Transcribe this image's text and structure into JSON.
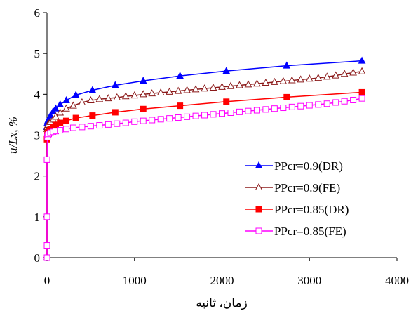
{
  "chart_data": {
    "type": "line",
    "title": "",
    "xlabel": "زمان، ثانیه",
    "ylabel": "u/Lx, %",
    "xlim": [
      0,
      4000
    ],
    "ylim": [
      0,
      6
    ],
    "xticks": [
      0,
      1000,
      2000,
      3000,
      4000
    ],
    "yticks": [
      0,
      1,
      2,
      3,
      4,
      5,
      6
    ],
    "grid": false,
    "legend_position": "lower-right",
    "series": [
      {
        "name": "PPcr=0.9(DR)",
        "color": "#0000ff",
        "marker": "triangle-filled",
        "x": [
          0,
          0,
          5,
          10,
          20,
          40,
          70,
          100,
          150,
          220,
          330,
          520,
          780,
          1100,
          1520,
          2050,
          2740,
          3600
        ],
        "y": [
          0,
          3.2,
          3.3,
          3.35,
          3.4,
          3.48,
          3.58,
          3.65,
          3.75,
          3.85,
          3.98,
          4.1,
          4.22,
          4.33,
          4.45,
          4.57,
          4.7,
          4.82
        ]
      },
      {
        "name": "PPcr=0.9(FE)",
        "color": "#8b1a1a",
        "marker": "triangle-open",
        "x": [
          0,
          0,
          5,
          10,
          20,
          40,
          70,
          100,
          150,
          220,
          300,
          400,
          500,
          600,
          700,
          800,
          900,
          1000,
          1100,
          1200,
          1300,
          1400,
          1500,
          1600,
          1700,
          1800,
          1900,
          2000,
          2100,
          2200,
          2300,
          2400,
          2500,
          2600,
          2700,
          2800,
          2900,
          3000,
          3100,
          3200,
          3300,
          3400,
          3500,
          3600
        ],
        "y": [
          0,
          3.15,
          3.2,
          3.25,
          3.28,
          3.32,
          3.38,
          3.45,
          3.55,
          3.65,
          3.72,
          3.8,
          3.85,
          3.88,
          3.9,
          3.92,
          3.95,
          3.97,
          4.0,
          4.02,
          4.04,
          4.06,
          4.08,
          4.1,
          4.12,
          4.14,
          4.16,
          4.18,
          4.2,
          4.22,
          4.24,
          4.26,
          4.28,
          4.3,
          4.32,
          4.34,
          4.36,
          4.38,
          4.4,
          4.43,
          4.46,
          4.5,
          4.53,
          4.56
        ]
      },
      {
        "name": "PPcr=0.85(DR)",
        "color": "#ff0000",
        "marker": "square-filled",
        "x": [
          0,
          0,
          5,
          10,
          20,
          40,
          70,
          100,
          150,
          220,
          330,
          520,
          780,
          1100,
          1520,
          2050,
          2740,
          3600
        ],
        "y": [
          0,
          2.9,
          3.0,
          3.05,
          3.1,
          3.15,
          3.2,
          3.25,
          3.3,
          3.35,
          3.42,
          3.48,
          3.56,
          3.64,
          3.72,
          3.82,
          3.93,
          4.05
        ]
      },
      {
        "name": "PPcr=0.85(FE)",
        "color": "#ff00ff",
        "marker": "square-open",
        "x": [
          0,
          0,
          0,
          0,
          5,
          10,
          20,
          40,
          70,
          100,
          150,
          220,
          300,
          400,
          500,
          600,
          700,
          800,
          900,
          1000,
          1100,
          1200,
          1300,
          1400,
          1500,
          1600,
          1700,
          1800,
          1900,
          2000,
          2100,
          2200,
          2300,
          2400,
          2500,
          2600,
          2700,
          2800,
          2900,
          3000,
          3100,
          3200,
          3300,
          3400,
          3500,
          3600
        ],
        "y": [
          0,
          0.3,
          1.0,
          2.4,
          2.95,
          3.0,
          3.03,
          3.06,
          3.08,
          3.1,
          3.12,
          3.15,
          3.18,
          3.2,
          3.22,
          3.24,
          3.26,
          3.28,
          3.3,
          3.33,
          3.35,
          3.37,
          3.39,
          3.41,
          3.43,
          3.45,
          3.47,
          3.49,
          3.51,
          3.53,
          3.55,
          3.57,
          3.59,
          3.61,
          3.63,
          3.65,
          3.67,
          3.69,
          3.71,
          3.73,
          3.75,
          3.77,
          3.8,
          3.83,
          3.86,
          3.9
        ]
      }
    ]
  }
}
